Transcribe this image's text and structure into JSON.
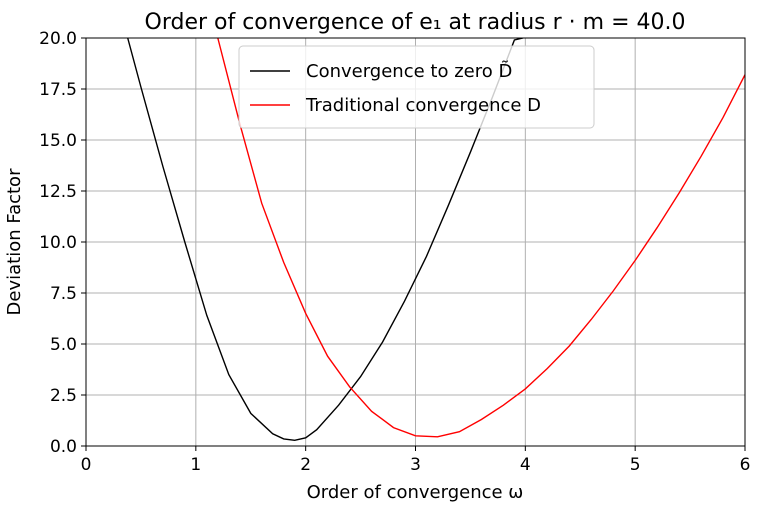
{
  "chart_data": {
    "type": "line",
    "title": "Order of convergence of e₁ at radius r · m = 40.0",
    "xlabel": "Order of convergence ω",
    "ylabel": "Deviation Factor",
    "xlim": [
      0,
      6
    ],
    "ylim": [
      0,
      20
    ],
    "xticks": [
      0,
      1,
      2,
      3,
      4,
      5,
      6
    ],
    "xtick_labels": [
      "0",
      "1",
      "2",
      "3",
      "4",
      "5",
      "6"
    ],
    "yticks": [
      0,
      2.5,
      5,
      7.5,
      10,
      12.5,
      15,
      17.5,
      20
    ],
    "ytick_labels": [
      "0.0",
      "2.5",
      "5.0",
      "7.5",
      "10.0",
      "12.5",
      "15.0",
      "17.5",
      "20.0"
    ],
    "grid": true,
    "legend_position": "top-center",
    "series": [
      {
        "name": "Convergence to zero D̃",
        "color": "#000000",
        "x": [
          0.38,
          0.5,
          0.7,
          0.9,
          1.1,
          1.3,
          1.5,
          1.7,
          1.8,
          1.9,
          2.0,
          2.1,
          2.3,
          2.5,
          2.7,
          2.9,
          3.1,
          3.3,
          3.5,
          3.7,
          3.9,
          3.98
        ],
        "y": [
          20.0,
          17.6,
          13.7,
          10.0,
          6.4,
          3.5,
          1.6,
          0.6,
          0.35,
          0.28,
          0.4,
          0.8,
          2.0,
          3.4,
          5.1,
          7.1,
          9.3,
          11.8,
          14.4,
          17.1,
          19.9,
          20.0
        ]
      },
      {
        "name": "Traditional convergence D",
        "color": "#ff0000",
        "x": [
          1.2,
          1.4,
          1.6,
          1.8,
          2.0,
          2.2,
          2.4,
          2.6,
          2.8,
          3.0,
          3.2,
          3.4,
          3.6,
          3.8,
          4.0,
          4.2,
          4.4,
          4.6,
          4.8,
          5.0,
          5.2,
          5.4,
          5.6,
          5.8,
          6.0
        ],
        "y": [
          20.0,
          15.8,
          11.9,
          9.0,
          6.5,
          4.4,
          2.9,
          1.7,
          0.9,
          0.5,
          0.45,
          0.7,
          1.3,
          2.0,
          2.8,
          3.8,
          4.9,
          6.2,
          7.6,
          9.1,
          10.7,
          12.4,
          14.2,
          16.1,
          18.2
        ]
      }
    ]
  }
}
